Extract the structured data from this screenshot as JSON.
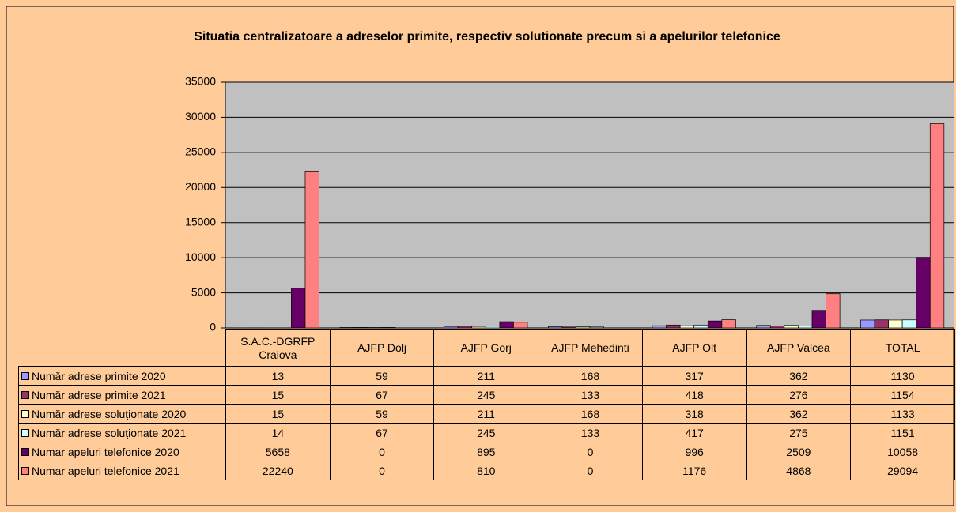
{
  "chart_data": {
    "type": "bar",
    "title": "Situatia centralizatoare a adreselor primite, respectiv solutionate precum si a apelurilor telefonice",
    "categories": [
      "S.A.C.-DGRFP Craiova",
      "AJFP Dolj",
      "AJFP Gorj",
      "AJFP Mehedinti",
      "AJFP Olt",
      "AJFP Valcea",
      "TOTAL"
    ],
    "series": [
      {
        "name": "Număr adrese primite 2020",
        "color": "#9999ff",
        "values": [
          13,
          59,
          211,
          168,
          317,
          362,
          1130
        ]
      },
      {
        "name": "Număr adrese primite 2021",
        "color": "#993366",
        "values": [
          15,
          67,
          245,
          133,
          418,
          276,
          1154
        ]
      },
      {
        "name": "Număr adrese soluţionate 2020",
        "color": "#ffffcc",
        "values": [
          15,
          59,
          211,
          168,
          318,
          362,
          1133
        ]
      },
      {
        "name": "Număr adrese soluţionate 2021",
        "color": "#ccffff",
        "values": [
          14,
          67,
          245,
          133,
          417,
          275,
          1151
        ]
      },
      {
        "name": "Numar apeluri telefonice 2020",
        "color": "#660066",
        "values": [
          5658,
          0,
          895,
          0,
          996,
          2509,
          10058
        ]
      },
      {
        "name": "Numar apeluri telefonice 2021",
        "color": "#ff8080",
        "values": [
          22240,
          0,
          810,
          0,
          1176,
          4868,
          29094
        ]
      }
    ],
    "ylim": [
      0,
      35000
    ],
    "yticks": [
      0,
      5000,
      10000,
      15000,
      20000,
      25000,
      30000,
      35000
    ],
    "grid": true,
    "data_table": true
  }
}
